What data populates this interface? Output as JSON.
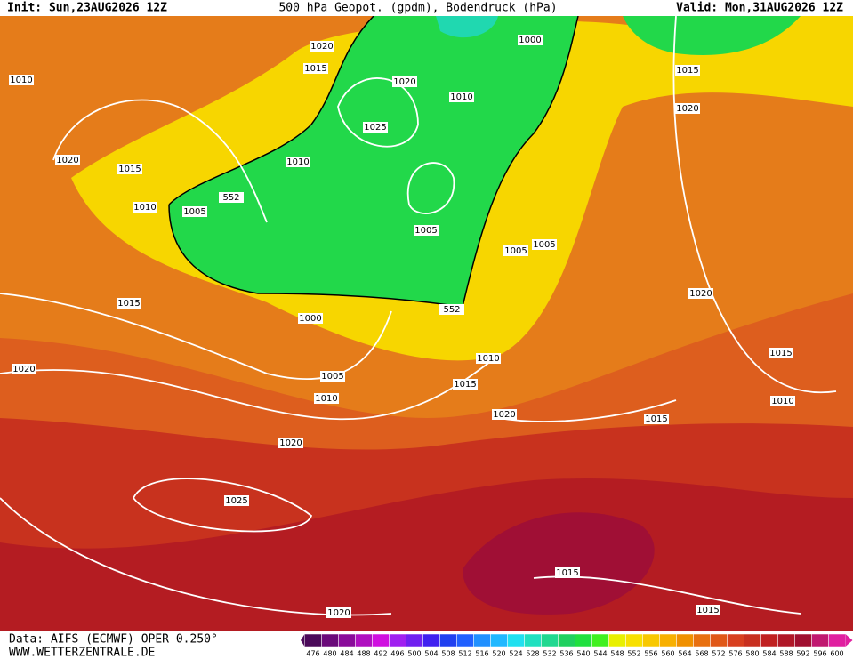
{
  "header": {
    "init": "Init: Sun,23AUG2026 12Z",
    "title": "500 hPa Geopot. (gpdm), Bodendruck (hPa)",
    "valid": "Valid: Mon,31AUG2026 12Z"
  },
  "isobar_labels": [
    "1020",
    "1015",
    "1010",
    "1020",
    "1010",
    "1000",
    "1015",
    "1025",
    "1020",
    "1010",
    "1020",
    "1015",
    "552",
    "1010",
    "1005",
    "1005",
    "1005",
    "1005",
    "1020",
    "1015",
    "552",
    "1000",
    "1015",
    "1010",
    "1020",
    "1005",
    "1015",
    "1010",
    "1010",
    "1020",
    "1015",
    "1020",
    "1025",
    "1015",
    "1015",
    "1020"
  ],
  "legend": {
    "labels": [
      "476",
      "480",
      "484",
      "488",
      "492",
      "496",
      "500",
      "504",
      "508",
      "512",
      "516",
      "520",
      "524",
      "528",
      "532",
      "536",
      "540",
      "544",
      "548",
      "552",
      "556",
      "560",
      "564",
      "568",
      "572",
      "576",
      "580",
      "584",
      "588",
      "592",
      "596",
      "600"
    ],
    "colors": [
      "#4b0a5a",
      "#6a0a7a",
      "#8a0c9a",
      "#b010c0",
      "#d010e0",
      "#a020f0",
      "#7020f0",
      "#4020f0",
      "#2040f0",
      "#2060ff",
      "#2090ff",
      "#20b8ff",
      "#20e0f0",
      "#20e0c0",
      "#20d890",
      "#20d060",
      "#20e040",
      "#40f020",
      "#e8f000",
      "#f8e000",
      "#f8c800",
      "#f8b000",
      "#f09000",
      "#e87010",
      "#e05818",
      "#d84020",
      "#c83020",
      "#c02020",
      "#b01828",
      "#a01030",
      "#c01870",
      "#e020a0"
    ]
  },
  "footer": {
    "source": "Data: AIFS (ECMWF) OPER 0.250°",
    "site": "WWW.WETTERZENTRALE.DE"
  }
}
